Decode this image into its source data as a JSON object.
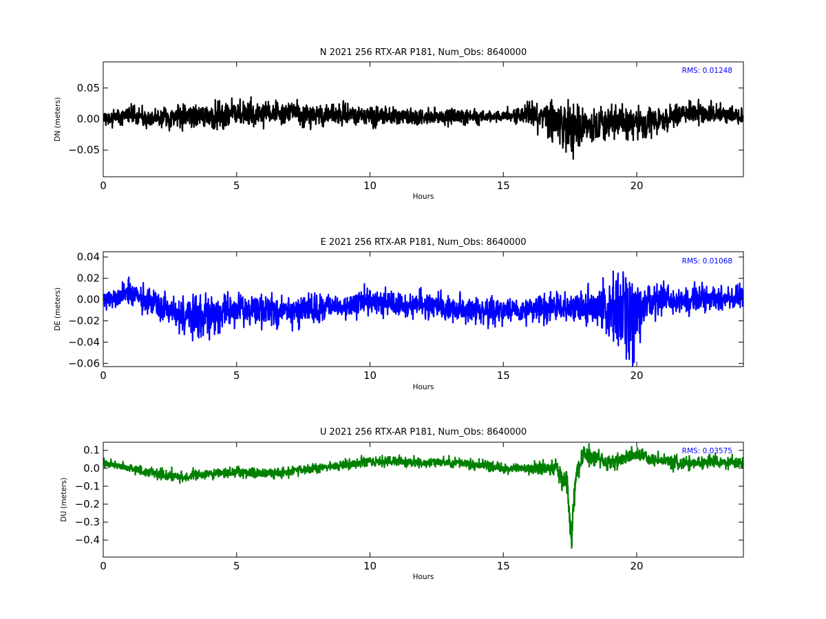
{
  "chart_data": [
    {
      "type": "line",
      "title": "N 2021 256 RTX-AR  P181, Num_Obs: 8640000",
      "xlabel": "Hours",
      "ylabel": "DN (meters)",
      "annotation": "RMS:  0.01248",
      "xlim": [
        0,
        24
      ],
      "ylim": [
        -0.093,
        0.092
      ],
      "xticks": [
        0,
        5,
        10,
        15,
        20
      ],
      "xtick_labels": [
        "0",
        "5",
        "10",
        "15",
        "20"
      ],
      "yticks": [
        0.05,
        0.0,
        -0.05
      ],
      "ytick_labels": [
        "0.05",
        "0.00",
        "−0.05"
      ],
      "color": "#000000",
      "grid": false,
      "series": [
        {
          "x": [
            0,
            1,
            2,
            3,
            4,
            5,
            6,
            7,
            8,
            9,
            10,
            11,
            12,
            13,
            14,
            15,
            16,
            17,
            17.35,
            17.6,
            18,
            19,
            19.5,
            20,
            21,
            22,
            23,
            24
          ],
          "center": [
            0.0,
            0.005,
            0.0,
            0.005,
            0.005,
            0.01,
            0.008,
            0.01,
            0.005,
            0.008,
            0.005,
            0.005,
            0.003,
            0.005,
            0.003,
            0.005,
            0.008,
            -0.005,
            -0.015,
            -0.02,
            -0.01,
            -0.005,
            -0.005,
            -0.005,
            0.0,
            0.01,
            0.008,
            0.005
          ],
          "amplitude": [
            0.014,
            0.016,
            0.016,
            0.022,
            0.025,
            0.024,
            0.022,
            0.02,
            0.02,
            0.02,
            0.018,
            0.017,
            0.014,
            0.014,
            0.012,
            0.011,
            0.02,
            0.04,
            0.05,
            0.05,
            0.03,
            0.028,
            0.03,
            0.026,
            0.022,
            0.02,
            0.018,
            0.016
          ]
        }
      ]
    },
    {
      "type": "line",
      "title": "E 2021 256 RTX-AR  P181, Num_Obs: 8640000",
      "xlabel": "Hours",
      "ylabel": "DE (meters)",
      "annotation": "RMS:  0.01068",
      "xlim": [
        0,
        24
      ],
      "ylim": [
        -0.063,
        0.045
      ],
      "xticks": [
        0,
        5,
        10,
        15,
        20
      ],
      "xtick_labels": [
        "0",
        "5",
        "10",
        "15",
        "20"
      ],
      "yticks": [
        0.04,
        0.02,
        0.0,
        -0.02,
        -0.04,
        -0.06
      ],
      "ytick_labels": [
        "0.04",
        "0.02",
        "0.00",
        "−0.02",
        "−0.04",
        "−0.06"
      ],
      "color": "#0000ff",
      "grid": false,
      "series": [
        {
          "x": [
            0,
            1,
            2,
            3,
            4,
            5,
            6,
            7,
            8,
            9,
            10,
            11,
            12,
            13,
            14,
            15,
            16,
            17,
            18,
            19,
            19.8,
            20.3,
            21,
            22,
            23,
            24
          ],
          "center": [
            0.0,
            0.005,
            -0.005,
            -0.015,
            -0.015,
            -0.01,
            -0.01,
            -0.012,
            -0.008,
            -0.005,
            -0.002,
            -0.005,
            -0.005,
            -0.008,
            -0.01,
            -0.01,
            -0.008,
            -0.008,
            -0.008,
            -0.01,
            -0.012,
            -0.005,
            0.0,
            0.0,
            0.002,
            0.0
          ],
          "amplitude": [
            0.01,
            0.014,
            0.014,
            0.018,
            0.02,
            0.018,
            0.018,
            0.016,
            0.014,
            0.013,
            0.015,
            0.014,
            0.013,
            0.015,
            0.015,
            0.014,
            0.013,
            0.013,
            0.018,
            0.03,
            0.045,
            0.025,
            0.016,
            0.014,
            0.013,
            0.012
          ]
        }
      ]
    },
    {
      "type": "line",
      "title": "U 2021 256 RTX-AR  P181, Num_Obs: 8640000",
      "xlabel": "Hours",
      "ylabel": "DU (meters)",
      "annotation": "RMS:  0.03575",
      "xlim": [
        0,
        24
      ],
      "ylim": [
        -0.495,
        0.145
      ],
      "xticks": [
        0,
        5,
        10,
        15,
        20
      ],
      "xtick_labels": [
        "0",
        "5",
        "10",
        "15",
        "20"
      ],
      "yticks": [
        0.1,
        0.0,
        -0.1,
        -0.2,
        -0.3,
        -0.4
      ],
      "ytick_labels": [
        "0.1",
        "0.0",
        "−0.1",
        "−0.2",
        "−0.3",
        "−0.4"
      ],
      "color": "#008000",
      "grid": false,
      "series": [
        {
          "x": [
            0,
            1,
            2,
            3,
            4,
            5,
            6,
            7,
            8,
            9,
            10,
            11,
            12,
            13,
            14,
            15,
            16,
            17,
            17.4,
            17.55,
            17.7,
            18,
            19,
            20,
            21,
            22,
            23,
            24
          ],
          "center": [
            0.03,
            0.0,
            -0.03,
            -0.05,
            -0.03,
            -0.02,
            -0.03,
            -0.02,
            0.0,
            0.02,
            0.04,
            0.04,
            0.03,
            0.03,
            0.02,
            0.0,
            0.0,
            0.0,
            -0.1,
            -0.4,
            -0.05,
            0.08,
            0.03,
            0.08,
            0.04,
            0.03,
            0.04,
            0.03
          ],
          "amplitude": [
            0.03,
            0.025,
            0.035,
            0.035,
            0.03,
            0.03,
            0.035,
            0.03,
            0.03,
            0.03,
            0.04,
            0.035,
            0.03,
            0.03,
            0.035,
            0.03,
            0.03,
            0.06,
            0.08,
            0.1,
            0.08,
            0.06,
            0.05,
            0.05,
            0.04,
            0.04,
            0.04,
            0.04
          ]
        }
      ]
    }
  ]
}
